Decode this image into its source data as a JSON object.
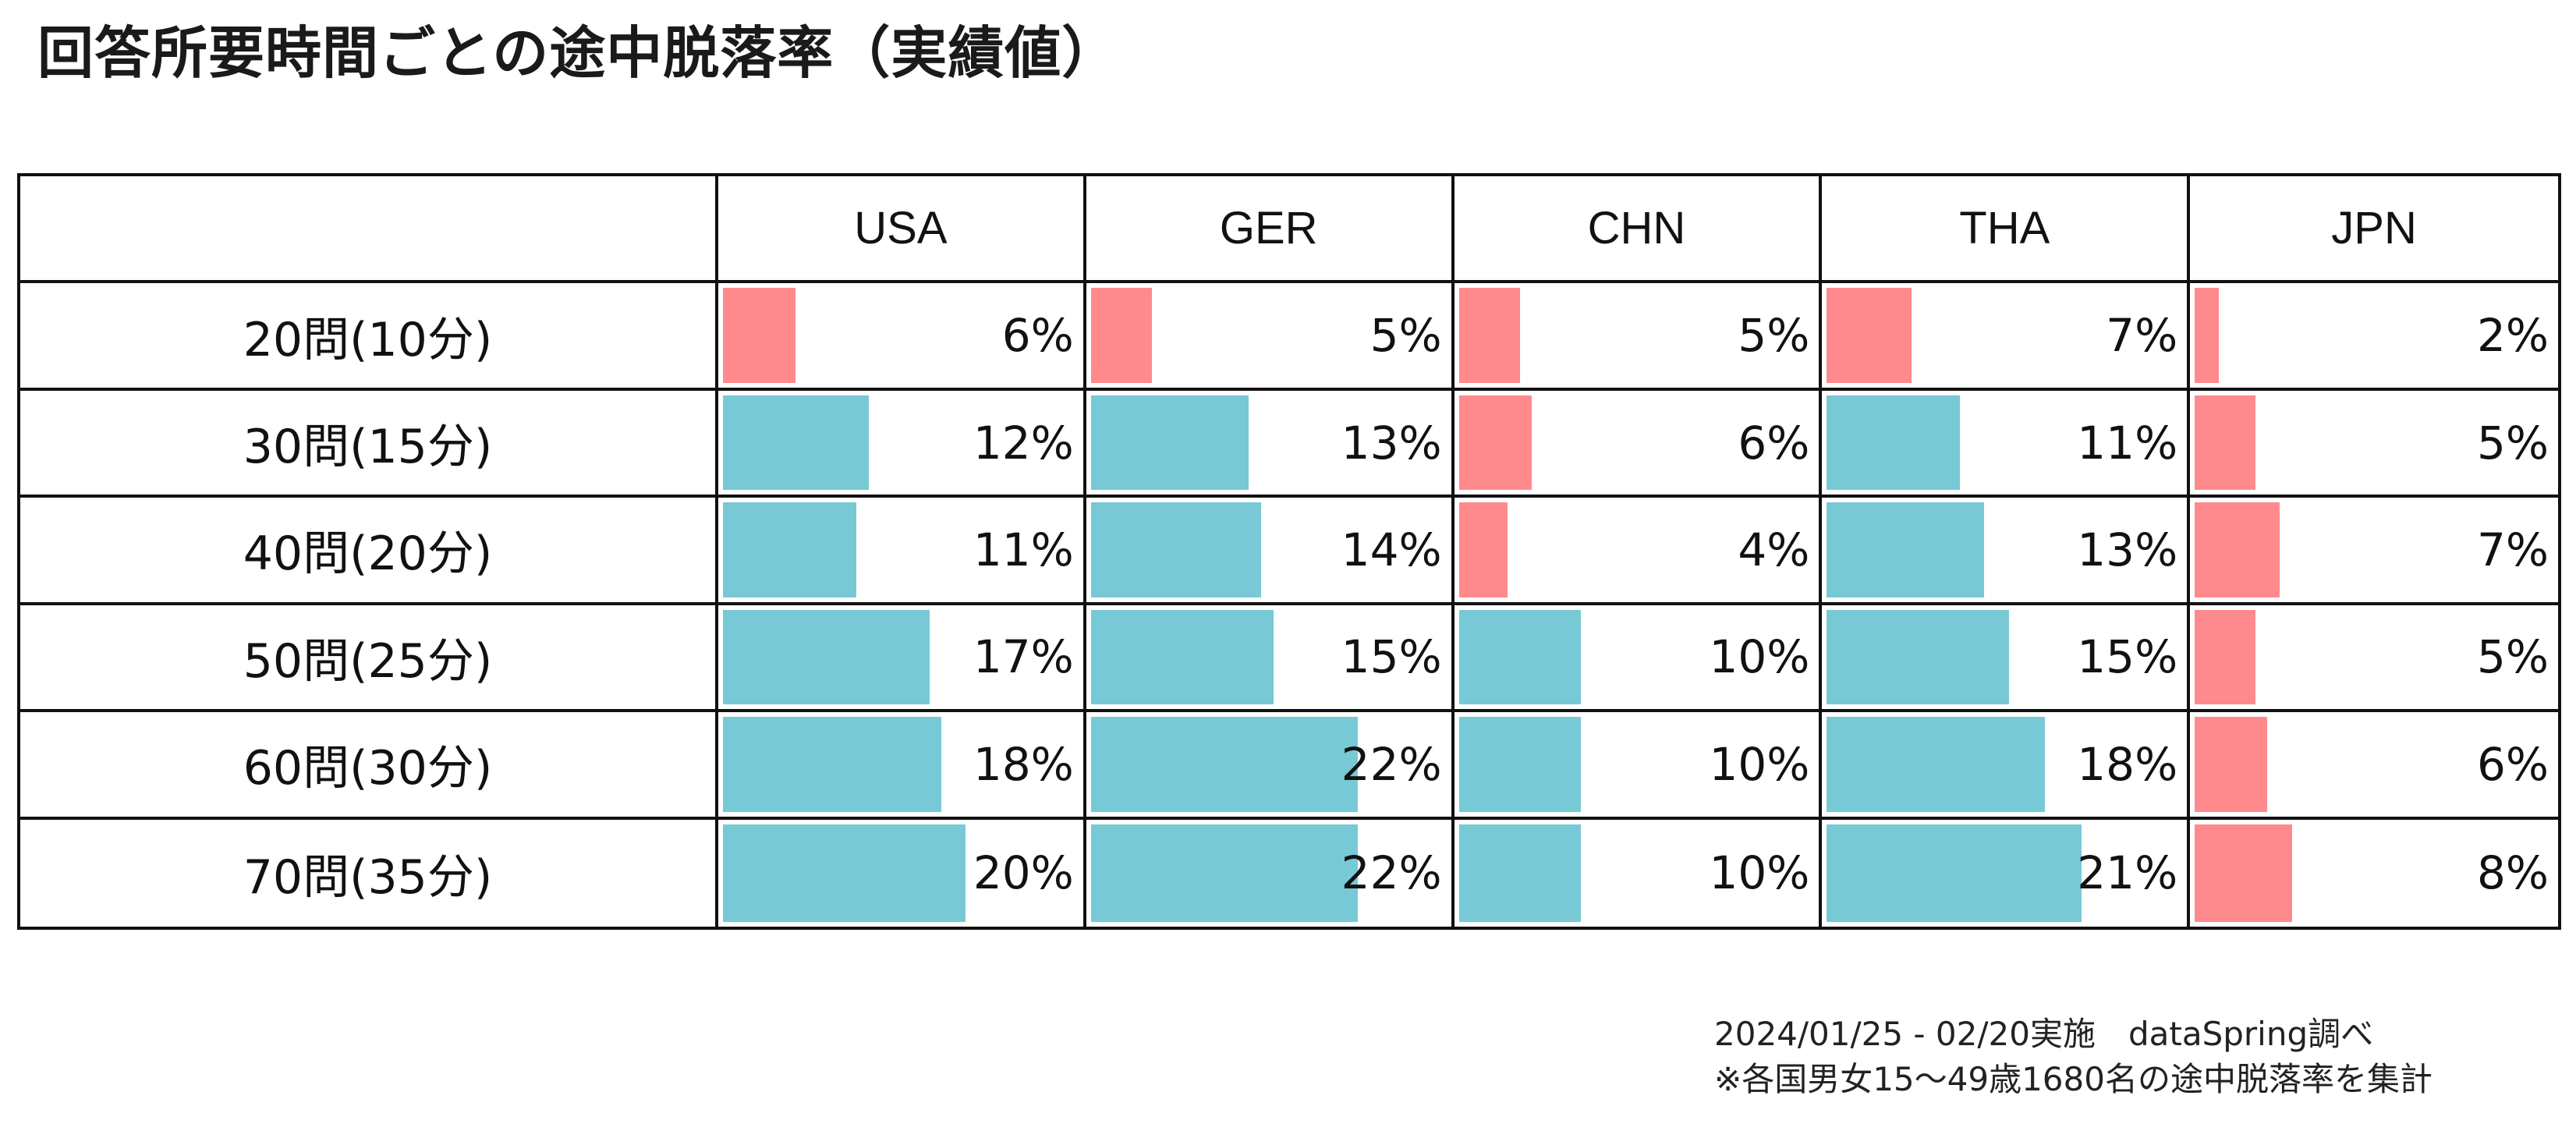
{
  "title": "回答所要時間ごとの途中脱落率（実績値）",
  "colors": {
    "low": "#ff8a8d",
    "high": "#77c9d6",
    "border": "#111111"
  },
  "chart_data": {
    "type": "table",
    "title": "回答所要時間ごとの途中脱落率（実績値）",
    "columns": [
      "USA",
      "GER",
      "CHN",
      "THA",
      "JPN"
    ],
    "rows": [
      "20問(10分)",
      "30問(15分)",
      "40問(20分)",
      "50問(25分)",
      "60問(30分)",
      "70問(35分)"
    ],
    "values": [
      [
        6,
        5,
        5,
        7,
        2
      ],
      [
        12,
        13,
        6,
        11,
        5
      ],
      [
        11,
        14,
        4,
        13,
        7
      ],
      [
        17,
        15,
        10,
        15,
        5
      ],
      [
        18,
        22,
        10,
        18,
        6
      ],
      [
        20,
        22,
        10,
        21,
        8
      ]
    ],
    "value_labels": [
      [
        "6%",
        "5%",
        "5%",
        "7%",
        "2%"
      ],
      [
        "12%",
        "13%",
        "6%",
        "11%",
        "5%"
      ],
      [
        "11%",
        "14%",
        "4%",
        "13%",
        "7%"
      ],
      [
        "17%",
        "15%",
        "10%",
        "15%",
        "5%"
      ],
      [
        "18%",
        "22%",
        "10%",
        "18%",
        "6%"
      ],
      [
        "20%",
        "22%",
        "10%",
        "21%",
        "8%"
      ]
    ],
    "bar_color_threshold_percent": 10,
    "bar_scale_max_percent": 30
  },
  "footnote": {
    "line1": "2024/01/25 - 02/20実施　dataSpring調べ",
    "line2": "※各国男女15～49歳1680名の途中脱落率を集計"
  }
}
